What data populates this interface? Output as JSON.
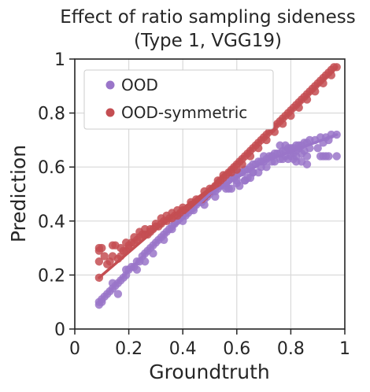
{
  "chart_data": {
    "type": "scatter",
    "title": [
      "Effect of ratio sampling sideness",
      "(Type 1, VGG19)"
    ],
    "xlabel": "Groundtruth",
    "ylabel": "Prediction",
    "xlim": [
      0,
      1
    ],
    "ylim": [
      0,
      1
    ],
    "xticks": [
      0,
      0.2,
      0.4,
      0.6,
      0.8,
      1
    ],
    "yticks": [
      0,
      0.2,
      0.4,
      0.6,
      0.8,
      1
    ],
    "xtick_labels": [
      "0",
      "0.2",
      "0.4",
      "0.6",
      "0.8",
      "1"
    ],
    "ytick_labels": [
      "0",
      "0.2",
      "0.4",
      "0.6",
      "0.8",
      "1"
    ],
    "grid": true,
    "legend": "upper-left",
    "series": [
      {
        "name": "OOD",
        "color": "#9a75c9",
        "points": [
          [
            0.09,
            0.09
          ],
          [
            0.09,
            0.1
          ],
          [
            0.1,
            0.11
          ],
          [
            0.11,
            0.12
          ],
          [
            0.12,
            0.13
          ],
          [
            0.13,
            0.14
          ],
          [
            0.14,
            0.15
          ],
          [
            0.15,
            0.16
          ],
          [
            0.16,
            0.17
          ],
          [
            0.17,
            0.18
          ],
          [
            0.18,
            0.19
          ],
          [
            0.19,
            0.2
          ],
          [
            0.2,
            0.22
          ],
          [
            0.21,
            0.23
          ],
          [
            0.22,
            0.23
          ],
          [
            0.23,
            0.25
          ],
          [
            0.24,
            0.25
          ],
          [
            0.25,
            0.27
          ],
          [
            0.26,
            0.28
          ],
          [
            0.27,
            0.29
          ],
          [
            0.28,
            0.3
          ],
          [
            0.29,
            0.31
          ],
          [
            0.3,
            0.32
          ],
          [
            0.31,
            0.33
          ],
          [
            0.32,
            0.34
          ],
          [
            0.33,
            0.35
          ],
          [
            0.34,
            0.36
          ],
          [
            0.35,
            0.37
          ],
          [
            0.36,
            0.38
          ],
          [
            0.37,
            0.39
          ],
          [
            0.38,
            0.4
          ],
          [
            0.39,
            0.41
          ],
          [
            0.4,
            0.42
          ],
          [
            0.41,
            0.42
          ],
          [
            0.42,
            0.43
          ],
          [
            0.43,
            0.44
          ],
          [
            0.44,
            0.45
          ],
          [
            0.45,
            0.46
          ],
          [
            0.46,
            0.47
          ],
          [
            0.47,
            0.47
          ],
          [
            0.48,
            0.48
          ],
          [
            0.49,
            0.49
          ],
          [
            0.5,
            0.5
          ],
          [
            0.51,
            0.51
          ],
          [
            0.52,
            0.51
          ],
          [
            0.53,
            0.52
          ],
          [
            0.54,
            0.53
          ],
          [
            0.55,
            0.54
          ],
          [
            0.56,
            0.54
          ],
          [
            0.57,
            0.55
          ],
          [
            0.58,
            0.56
          ],
          [
            0.59,
            0.56
          ],
          [
            0.6,
            0.57
          ],
          [
            0.61,
            0.58
          ],
          [
            0.62,
            0.58
          ],
          [
            0.63,
            0.59
          ],
          [
            0.64,
            0.59
          ],
          [
            0.65,
            0.6
          ],
          [
            0.66,
            0.61
          ],
          [
            0.67,
            0.61
          ],
          [
            0.68,
            0.62
          ],
          [
            0.69,
            0.62
          ],
          [
            0.7,
            0.62
          ],
          [
            0.71,
            0.63
          ],
          [
            0.72,
            0.64
          ],
          [
            0.73,
            0.64
          ],
          [
            0.74,
            0.65
          ],
          [
            0.75,
            0.65
          ],
          [
            0.76,
            0.65
          ],
          [
            0.77,
            0.66
          ],
          [
            0.78,
            0.66
          ],
          [
            0.79,
            0.67
          ],
          [
            0.8,
            0.67
          ],
          [
            0.81,
            0.67
          ],
          [
            0.82,
            0.68
          ],
          [
            0.83,
            0.68
          ],
          [
            0.84,
            0.68
          ],
          [
            0.85,
            0.69
          ],
          [
            0.86,
            0.69
          ],
          [
            0.87,
            0.7
          ],
          [
            0.89,
            0.7
          ],
          [
            0.91,
            0.71
          ],
          [
            0.93,
            0.71
          ],
          [
            0.95,
            0.72
          ],
          [
            0.97,
            0.72
          ],
          [
            0.1,
            0.1
          ],
          [
            0.14,
            0.17
          ],
          [
            0.16,
            0.13
          ],
          [
            0.19,
            0.22
          ],
          [
            0.23,
            0.22
          ],
          [
            0.26,
            0.25
          ],
          [
            0.29,
            0.28
          ],
          [
            0.33,
            0.33
          ],
          [
            0.36,
            0.37
          ],
          [
            0.4,
            0.4
          ],
          [
            0.44,
            0.44
          ],
          [
            0.48,
            0.46
          ],
          [
            0.52,
            0.49
          ],
          [
            0.56,
            0.52
          ],
          [
            0.6,
            0.54
          ],
          [
            0.63,
            0.55
          ],
          [
            0.66,
            0.58
          ],
          [
            0.7,
            0.64
          ],
          [
            0.73,
            0.64
          ],
          [
            0.76,
            0.68
          ],
          [
            0.78,
            0.68
          ],
          [
            0.8,
            0.64
          ],
          [
            0.8,
            0.66
          ],
          [
            0.81,
            0.65
          ],
          [
            0.82,
            0.66
          ],
          [
            0.82,
            0.64
          ],
          [
            0.83,
            0.67
          ],
          [
            0.84,
            0.65
          ],
          [
            0.85,
            0.66
          ],
          [
            0.86,
            0.64
          ],
          [
            0.87,
            0.67
          ],
          [
            0.86,
            0.61
          ],
          [
            0.84,
            0.62
          ],
          [
            0.82,
            0.62
          ],
          [
            0.81,
            0.63
          ],
          [
            0.79,
            0.63
          ],
          [
            0.78,
            0.64
          ],
          [
            0.77,
            0.63
          ],
          [
            0.76,
            0.63
          ],
          [
            0.74,
            0.62
          ],
          [
            0.73,
            0.62
          ],
          [
            0.71,
            0.6
          ],
          [
            0.69,
            0.6
          ],
          [
            0.68,
            0.58
          ],
          [
            0.66,
            0.58
          ],
          [
            0.65,
            0.56
          ],
          [
            0.64,
            0.56
          ],
          [
            0.63,
            0.55
          ],
          [
            0.61,
            0.53
          ],
          [
            0.6,
            0.55
          ],
          [
            0.58,
            0.52
          ],
          [
            0.57,
            0.52
          ],
          [
            0.56,
            0.53
          ],
          [
            0.9,
            0.67
          ],
          [
            0.92,
            0.69
          ],
          [
            0.94,
            0.7
          ],
          [
            0.91,
            0.64
          ],
          [
            0.92,
            0.64
          ],
          [
            0.93,
            0.64
          ],
          [
            0.94,
            0.64
          ],
          [
            0.97,
            0.64
          ]
        ],
        "fit": [
          [
            0.09,
            0.1
          ],
          [
            0.3,
            0.32
          ],
          [
            0.5,
            0.5
          ],
          [
            0.7,
            0.62
          ],
          [
            0.97,
            0.72
          ]
        ]
      },
      {
        "name": "OOD-symmetric",
        "color": "#c44e52",
        "points": [
          [
            0.09,
            0.19
          ],
          [
            0.09,
            0.25
          ],
          [
            0.09,
            0.29
          ],
          [
            0.09,
            0.3
          ],
          [
            0.1,
            0.3
          ],
          [
            0.11,
            0.27
          ],
          [
            0.12,
            0.24
          ],
          [
            0.13,
            0.25
          ],
          [
            0.14,
            0.27
          ],
          [
            0.14,
            0.31
          ],
          [
            0.15,
            0.31
          ],
          [
            0.16,
            0.26
          ],
          [
            0.17,
            0.27
          ],
          [
            0.18,
            0.29
          ],
          [
            0.19,
            0.29
          ],
          [
            0.2,
            0.3
          ],
          [
            0.2,
            0.31
          ],
          [
            0.21,
            0.32
          ],
          [
            0.22,
            0.32
          ],
          [
            0.23,
            0.33
          ],
          [
            0.24,
            0.34
          ],
          [
            0.25,
            0.35
          ],
          [
            0.26,
            0.35
          ],
          [
            0.27,
            0.35
          ],
          [
            0.28,
            0.36
          ],
          [
            0.29,
            0.37
          ],
          [
            0.3,
            0.38
          ],
          [
            0.31,
            0.38
          ],
          [
            0.32,
            0.39
          ],
          [
            0.33,
            0.4
          ],
          [
            0.34,
            0.4
          ],
          [
            0.35,
            0.41
          ],
          [
            0.36,
            0.41
          ],
          [
            0.37,
            0.42
          ],
          [
            0.38,
            0.42
          ],
          [
            0.39,
            0.43
          ],
          [
            0.4,
            0.44
          ],
          [
            0.41,
            0.44
          ],
          [
            0.42,
            0.45
          ],
          [
            0.43,
            0.46
          ],
          [
            0.44,
            0.46
          ],
          [
            0.45,
            0.47
          ],
          [
            0.46,
            0.48
          ],
          [
            0.47,
            0.48
          ],
          [
            0.48,
            0.49
          ],
          [
            0.49,
            0.5
          ],
          [
            0.5,
            0.51
          ],
          [
            0.51,
            0.52
          ],
          [
            0.52,
            0.53
          ],
          [
            0.53,
            0.54
          ],
          [
            0.54,
            0.55
          ],
          [
            0.55,
            0.56
          ],
          [
            0.56,
            0.57
          ],
          [
            0.57,
            0.58
          ],
          [
            0.58,
            0.59
          ],
          [
            0.59,
            0.6
          ],
          [
            0.6,
            0.61
          ],
          [
            0.61,
            0.62
          ],
          [
            0.62,
            0.63
          ],
          [
            0.63,
            0.64
          ],
          [
            0.64,
            0.65
          ],
          [
            0.65,
            0.66
          ],
          [
            0.66,
            0.67
          ],
          [
            0.67,
            0.68
          ],
          [
            0.68,
            0.69
          ],
          [
            0.69,
            0.7
          ],
          [
            0.7,
            0.71
          ],
          [
            0.71,
            0.72
          ],
          [
            0.72,
            0.73
          ],
          [
            0.73,
            0.74
          ],
          [
            0.74,
            0.75
          ],
          [
            0.75,
            0.76
          ],
          [
            0.76,
            0.77
          ],
          [
            0.77,
            0.78
          ],
          [
            0.78,
            0.79
          ],
          [
            0.79,
            0.8
          ],
          [
            0.8,
            0.81
          ],
          [
            0.81,
            0.82
          ],
          [
            0.82,
            0.83
          ],
          [
            0.83,
            0.84
          ],
          [
            0.84,
            0.85
          ],
          [
            0.85,
            0.86
          ],
          [
            0.86,
            0.87
          ],
          [
            0.87,
            0.88
          ],
          [
            0.88,
            0.89
          ],
          [
            0.89,
            0.9
          ],
          [
            0.9,
            0.91
          ],
          [
            0.91,
            0.92
          ],
          [
            0.92,
            0.93
          ],
          [
            0.93,
            0.94
          ],
          [
            0.94,
            0.95
          ],
          [
            0.95,
            0.96
          ],
          [
            0.96,
            0.97
          ],
          [
            0.97,
            0.97
          ],
          [
            0.17,
            0.3
          ],
          [
            0.19,
            0.32
          ],
          [
            0.22,
            0.34
          ],
          [
            0.24,
            0.36
          ],
          [
            0.26,
            0.37
          ],
          [
            0.28,
            0.37
          ],
          [
            0.3,
            0.39
          ],
          [
            0.32,
            0.41
          ],
          [
            0.34,
            0.42
          ],
          [
            0.36,
            0.43
          ],
          [
            0.38,
            0.44
          ],
          [
            0.4,
            0.45
          ],
          [
            0.43,
            0.47
          ],
          [
            0.45,
            0.48
          ],
          [
            0.48,
            0.51
          ],
          [
            0.5,
            0.52
          ],
          [
            0.53,
            0.55
          ],
          [
            0.55,
            0.57
          ],
          [
            0.58,
            0.58
          ],
          [
            0.6,
            0.59
          ],
          [
            0.62,
            0.61
          ],
          [
            0.65,
            0.64
          ],
          [
            0.68,
            0.67
          ],
          [
            0.71,
            0.7
          ],
          [
            0.74,
            0.73
          ],
          [
            0.77,
            0.76
          ],
          [
            0.8,
            0.79
          ],
          [
            0.83,
            0.82
          ],
          [
            0.86,
            0.85
          ],
          [
            0.89,
            0.88
          ],
          [
            0.92,
            0.91
          ],
          [
            0.95,
            0.94
          ]
        ],
        "fit": [
          [
            0.09,
            0.19
          ],
          [
            0.3,
            0.37
          ],
          [
            0.5,
            0.52
          ],
          [
            0.7,
            0.71
          ],
          [
            0.97,
            0.97
          ]
        ]
      }
    ]
  }
}
